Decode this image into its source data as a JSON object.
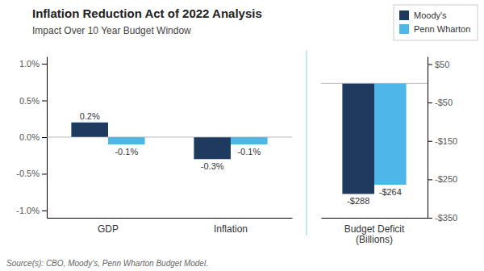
{
  "chart_data": [
    {
      "type": "bar",
      "title": "Inflation Reduction Act of 2022 Analysis",
      "subtitle": "Impact Over 10 Year Budget Window",
      "annotations": [
        "Source(s): CBO, Moody’s, Penn Wharton Budget Model."
      ],
      "categories": [
        "GDP",
        "Inflation"
      ],
      "series": [
        {
          "name": "Moody's",
          "color": "#1e3a5f",
          "values": [
            0.2,
            -0.3
          ],
          "value_labels": [
            "0.2%",
            "-0.3%"
          ]
        },
        {
          "name": "Penn Wharton",
          "color": "#4db8e8",
          "values": [
            -0.1,
            -0.1
          ],
          "value_labels": [
            "-0.1%",
            "-0.1%"
          ]
        }
      ],
      "ylim": [
        -1.1,
        1.1
      ],
      "yticks": [
        {
          "value": -1.0,
          "label": "-1.0%"
        },
        {
          "value": -0.5,
          "label": "-0.5%"
        },
        {
          "value": 0.0,
          "label": "0.0%"
        },
        {
          "value": 0.5,
          "label": "0.5%"
        },
        {
          "value": 1.0,
          "label": "1.0%"
        }
      ],
      "grid": false,
      "legend": "top-right",
      "data_labels": true
    },
    {
      "type": "bar",
      "categories": [
        "Budget Deficit\n(Billions)"
      ],
      "series": [
        {
          "color": "#1e3a5f",
          "values": [
            -288
          ],
          "value_labels": [
            "-$288"
          ]
        },
        {
          "color": "#4db8e8",
          "values": [
            -264
          ],
          "value_labels": [
            "-$264"
          ]
        }
      ],
      "ylim": [
        -350,
        70
      ],
      "yticks": [
        {
          "value": -350,
          "label": "-$350"
        },
        {
          "value": -250,
          "label": "-$250"
        },
        {
          "value": -150,
          "label": "-$150"
        },
        {
          "value": -50,
          "label": "-$50"
        },
        {
          "value": 50,
          "label": "$50"
        }
      ],
      "grid": false,
      "data_labels": true
    }
  ]
}
